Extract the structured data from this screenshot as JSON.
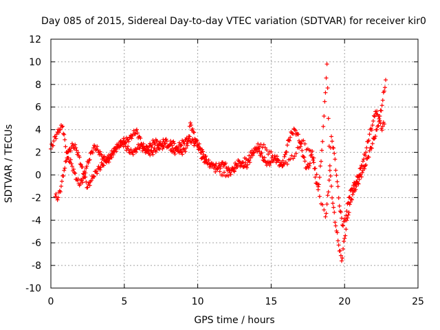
{
  "chart_data": {
    "type": "scatter",
    "title": "Day 085 of 2015, Sidereal Day-to-day VTEC variation (SDTVAR) for receiver kir0",
    "xlabel": "GPS time / hours",
    "ylabel": "SDTVAR / TECUs",
    "xlim": [
      0,
      25
    ],
    "ylim": [
      -10,
      12
    ],
    "xticks": [
      0,
      5,
      10,
      15,
      20,
      25
    ],
    "yticks": [
      -10,
      -8,
      -6,
      -4,
      -2,
      0,
      2,
      4,
      6,
      8,
      10,
      12
    ],
    "xtick_labels": [
      "0",
      "5",
      "10",
      "15",
      "20",
      "25"
    ],
    "ytick_labels": [
      "-10",
      "-8",
      "-6",
      "-4",
      "-2",
      "0",
      "2",
      "4",
      "6",
      "8",
      "10",
      "12"
    ],
    "grid": true,
    "marker": "+",
    "color": "#ff0000",
    "series": [
      {
        "name": "SDTVAR",
        "x": [
          0.0,
          0.2,
          0.4,
          0.6,
          0.8,
          1.0,
          1.2,
          1.4,
          1.6,
          1.8,
          2.0,
          2.2,
          2.4,
          2.6,
          2.8,
          3.0,
          3.2,
          3.4,
          3.6,
          3.8,
          4.0,
          4.2,
          4.4,
          4.6,
          4.8,
          5.0,
          5.2,
          5.4,
          5.6,
          5.8,
          6.0,
          6.2,
          6.4,
          6.6,
          6.8,
          7.0,
          7.2,
          7.4,
          7.6,
          7.8,
          8.0,
          8.2,
          8.4,
          8.6,
          8.8,
          9.0,
          9.2,
          9.4,
          9.6,
          9.8,
          10.0,
          10.2,
          10.4,
          10.6,
          10.8,
          11.0,
          11.2,
          11.4,
          11.6,
          11.8,
          12.0,
          12.2,
          12.4,
          12.6,
          12.8,
          13.0,
          13.2,
          13.4,
          13.6,
          13.8,
          14.0,
          14.2,
          14.4,
          14.6,
          14.8,
          15.0,
          15.2,
          15.4,
          15.6,
          15.8,
          16.0,
          16.2,
          16.4,
          16.6,
          16.8,
          17.0,
          17.2,
          17.4,
          17.6,
          17.8,
          18.0,
          18.2,
          18.4,
          18.6,
          18.8,
          19.0,
          19.2,
          19.4,
          19.6,
          19.8,
          20.0,
          20.2,
          20.4,
          20.6,
          20.8,
          21.0,
          21.2,
          21.4,
          21.6,
          21.8,
          22.0,
          22.2,
          22.4,
          22.6,
          22.8
        ],
        "y": [
          2.3,
          3.0,
          3.6,
          4.0,
          4.3,
          2.5,
          1.5,
          1.0,
          0.2,
          -0.5,
          -0.8,
          -0.3,
          0.6,
          1.3,
          2.1,
          2.5,
          2.2,
          1.8,
          1.5,
          1.3,
          1.4,
          1.9,
          2.3,
          2.6,
          2.9,
          3.0,
          3.1,
          3.3,
          3.6,
          3.9,
          3.4,
          2.7,
          2.3,
          2.4,
          2.6,
          2.9,
          3.0,
          2.7,
          2.8,
          3.1,
          2.6,
          2.2,
          2.0,
          2.3,
          2.7,
          2.9,
          3.1,
          3.2,
          3.0,
          2.8,
          2.7,
          2.3,
          1.8,
          1.3,
          1.0,
          0.9,
          0.8,
          0.7,
          0.9,
          1.0,
          0.6,
          0.2,
          0.5,
          0.9,
          1.2,
          1.0,
          0.8,
          0.9,
          1.5,
          2.0,
          2.3,
          2.1,
          1.6,
          1.2,
          1.0,
          1.2,
          1.5,
          1.3,
          0.9,
          0.8,
          2.0,
          3.1,
          3.7,
          4.0,
          3.6,
          2.8,
          1.6,
          0.6,
          0.8,
          2.1,
          -0.2,
          -1.3,
          1.2,
          5.2,
          9.8,
          0.4,
          -2.5,
          -4.5,
          -6.2,
          -7.6,
          -5.6,
          -3.8,
          -2.4,
          -1.5,
          -1.0,
          -0.4,
          0.2,
          0.8,
          1.6,
          2.4,
          3.2,
          4.0,
          5.2,
          6.6,
          8.4
        ],
        "alt_x": [
          0.3,
          0.5,
          0.7,
          0.9,
          1.1,
          1.3,
          1.5,
          1.7,
          1.9,
          2.1,
          2.3,
          2.5,
          2.7,
          2.9,
          3.1,
          3.3,
          3.5,
          3.7,
          3.9,
          4.1,
          4.3,
          4.5,
          4.7,
          4.9,
          5.1,
          5.3,
          5.5,
          5.7,
          5.9,
          6.1,
          6.3,
          6.5,
          6.7,
          6.9,
          7.1,
          7.3,
          7.5,
          7.7,
          8.1,
          8.3,
          8.5,
          8.7,
          8.9,
          9.1,
          9.3,
          9.5,
          9.7,
          9.9,
          10.1,
          10.3,
          10.5,
          10.7,
          11.1,
          11.5,
          11.9,
          12.3,
          12.7,
          13.1,
          13.5,
          13.9,
          14.3,
          14.7,
          15.1,
          15.5,
          15.9,
          16.3,
          16.7,
          17.1,
          17.5,
          17.9,
          18.3,
          18.7,
          18.9,
          19.1,
          19.3,
          19.5,
          19.7,
          19.9,
          20.1,
          20.3,
          20.5,
          20.7,
          20.9,
          21.1,
          21.3,
          21.5,
          21.7,
          21.9,
          22.1,
          22.3,
          22.5,
          22.7
        ],
        "alt_y": [
          -1.9,
          -2.0,
          -1.0,
          0.4,
          1.5,
          2.3,
          2.6,
          2.4,
          1.7,
          0.7,
          -0.2,
          -1.1,
          -0.6,
          -0.1,
          0.3,
          0.6,
          0.9,
          1.2,
          1.5,
          1.8,
          2.1,
          2.4,
          2.6,
          2.8,
          2.5,
          2.2,
          2.0,
          2.1,
          2.4,
          2.6,
          2.3,
          2.1,
          1.9,
          2.0,
          2.2,
          2.4,
          2.6,
          2.5,
          2.7,
          2.9,
          2.4,
          2.1,
          2.0,
          2.2,
          2.6,
          4.6,
          3.8,
          3.0,
          2.3,
          1.5,
          1.2,
          1.0,
          0.6,
          0.3,
          -0.1,
          0.4,
          0.7,
          1.1,
          1.7,
          2.3,
          2.7,
          2.2,
          1.7,
          1.3,
          1.0,
          1.4,
          1.9,
          3.0,
          2.3,
          1.5,
          -1.9,
          -3.7,
          -1.5,
          3.4,
          1.9,
          -0.6,
          -3.2,
          -4.5,
          -3.6,
          -2.0,
          -1.2,
          -0.8,
          -0.2,
          0.6,
          1.4,
          2.4,
          3.6,
          4.4,
          5.6,
          5.2,
          4.1,
          4.5
        ]
      }
    ]
  }
}
